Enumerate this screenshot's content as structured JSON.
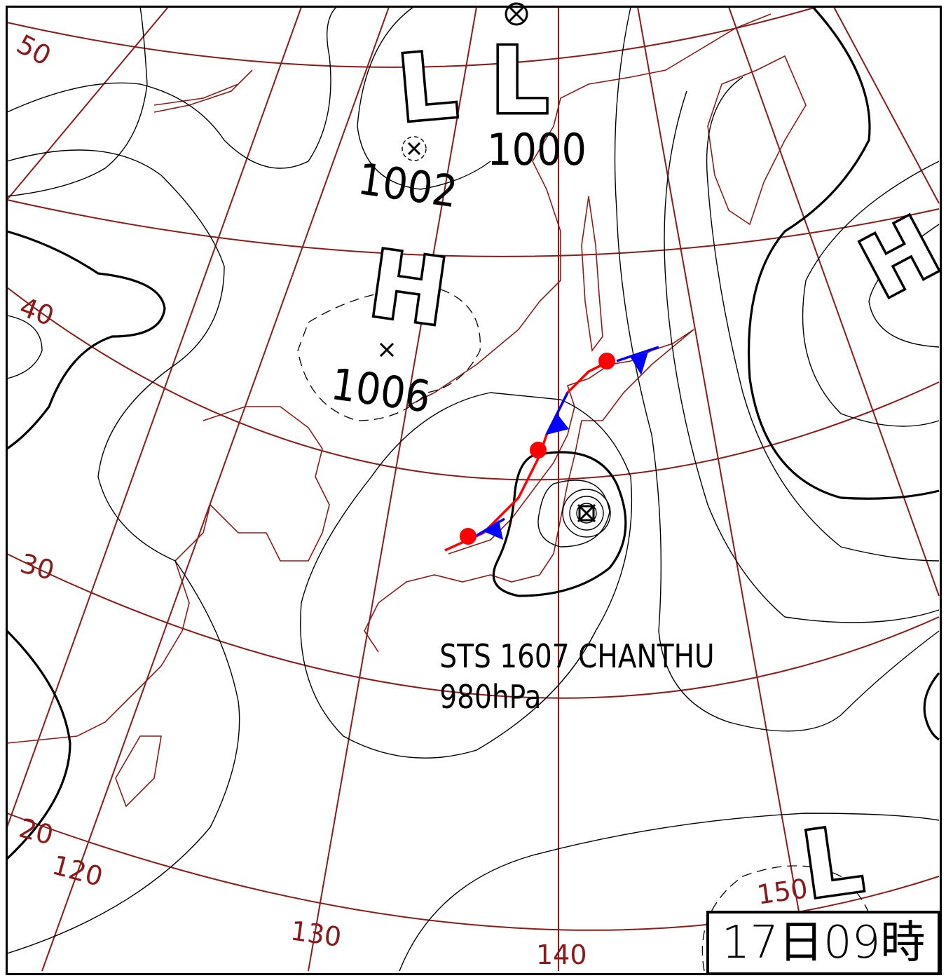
{
  "map": {
    "colors": {
      "grid": "#8b1a1a",
      "isobar": "#000000",
      "warm_front": "#ff0000",
      "cold_front": "#0000ff"
    },
    "latitude_labels": [
      "50",
      "40",
      "30",
      "20"
    ],
    "longitude_labels": [
      "120",
      "130",
      "140",
      "150"
    ],
    "pressure_systems": [
      {
        "type": "L",
        "symbol": "L"
      },
      {
        "type": "L",
        "symbol": "L"
      },
      {
        "type": "H",
        "symbol": "H"
      },
      {
        "type": "H",
        "symbol": "H"
      },
      {
        "type": "L",
        "symbol": "L"
      }
    ],
    "pressure_values": [
      "1002",
      "1000",
      "1006"
    ],
    "typhoon": {
      "name_line": "STS 1607 CHANTHU",
      "pressure": "980hPa"
    },
    "valid_time": "17日09時"
  }
}
